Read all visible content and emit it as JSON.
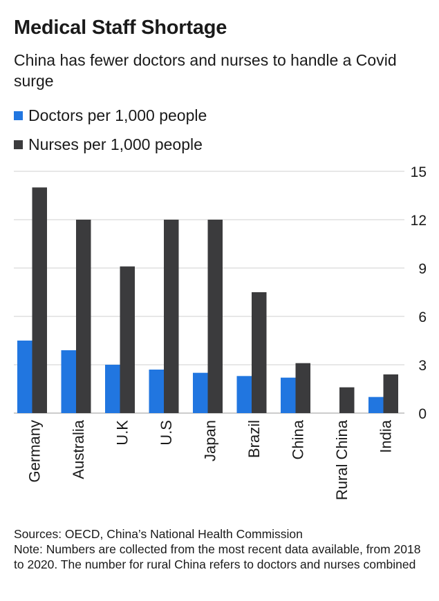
{
  "colors": {
    "doctors": "#2176e0",
    "nurses": "#3b3b3d",
    "grid": "#cfcfcf",
    "text": "#1a1a1a"
  },
  "header": {
    "title": "Medical Staff Shortage",
    "subtitle": "China has fewer doctors and nurses to handle a Covid surge"
  },
  "legend": [
    {
      "label": "Doctors per 1,000 people",
      "color": "#2176e0"
    },
    {
      "label": "Nurses per 1,000 people",
      "color": "#3b3b3d"
    }
  ],
  "footer": {
    "sources": "Sources: OECD, China’s National Health Commission",
    "note": "Note: Numbers are collected from the most recent data available, from 2018 to 2020. The number for rural China refers to doctors and nurses combined"
  },
  "chart_data": {
    "type": "bar",
    "categories": [
      "Germany",
      "Australia",
      "U.K",
      "U.S",
      "Japan",
      "Brazil",
      "China",
      "Rural China",
      "India"
    ],
    "series": [
      {
        "name": "Doctors per 1,000 people",
        "color": "#2176e0",
        "values": [
          4.5,
          3.9,
          3.0,
          2.7,
          2.5,
          2.3,
          2.2,
          null,
          1.0
        ]
      },
      {
        "name": "Nurses per 1,000 people",
        "color": "#3b3b3d",
        "values": [
          14.0,
          12.0,
          9.1,
          12.0,
          12.0,
          7.5,
          3.1,
          1.6,
          2.4
        ]
      }
    ],
    "yticks": [
      0,
      3,
      6,
      9,
      12,
      15
    ],
    "ylim": [
      0,
      15
    ],
    "y_axis_side": "right",
    "grid": true,
    "legend_position": "top-left"
  }
}
